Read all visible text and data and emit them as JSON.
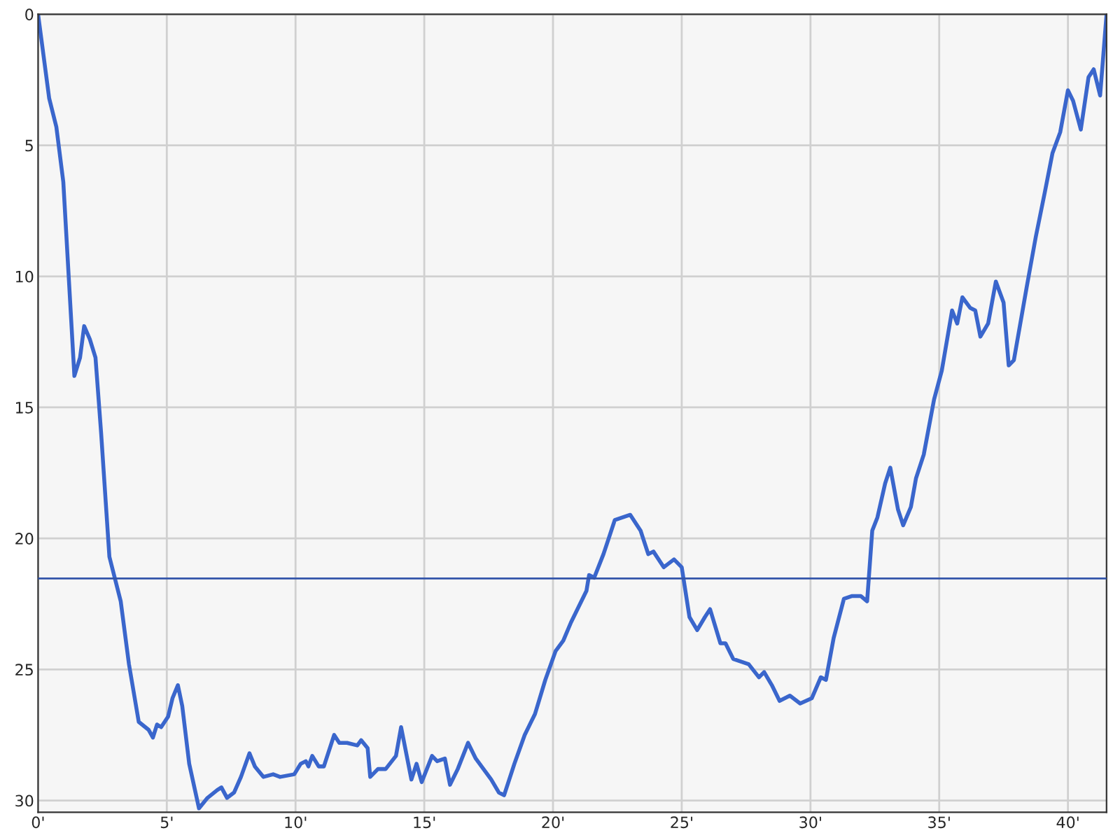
{
  "chart_data": {
    "type": "line",
    "x": [
      0,
      0.43,
      0.71,
      0.98,
      1.41,
      1.63,
      1.79,
      2.01,
      2.23,
      2.45,
      2.77,
      3.21,
      3.53,
      3.91,
      4.29,
      4.46,
      4.62,
      4.78,
      5.05,
      5.22,
      5.43,
      5.6,
      5.87,
      6.25,
      6.58,
      6.96,
      7.12,
      7.34,
      7.61,
      7.88,
      8.21,
      8.42,
      8.75,
      9.13,
      9.4,
      9.95,
      10.2,
      10.4,
      10.5,
      10.65,
      10.9,
      11.1,
      11.5,
      11.7,
      12.0,
      12.4,
      12.55,
      12.8,
      12.9,
      13.2,
      13.5,
      13.9,
      14.1,
      14.5,
      14.7,
      14.9,
      15.3,
      15.5,
      15.8,
      16.0,
      16.3,
      16.7,
      17.0,
      17.3,
      17.6,
      17.9,
      18.1,
      18.5,
      18.9,
      19.3,
      19.7,
      20.1,
      20.4,
      20.7,
      20.9,
      21.3,
      21.4,
      21.6,
      21.96,
      22.4,
      23.0,
      23.4,
      23.7,
      23.9,
      24.3,
      24.7,
      25.0,
      25.3,
      25.6,
      25.9,
      26.1,
      26.5,
      26.7,
      27.0,
      27.3,
      27.6,
      28.0,
      28.2,
      28.5,
      28.8,
      29.2,
      29.6,
      30.05,
      30.4,
      30.6,
      30.9,
      31.3,
      31.6,
      31.96,
      32.2,
      32.4,
      32.6,
      32.9,
      33.1,
      33.4,
      33.6,
      33.9,
      34.1,
      34.4,
      34.8,
      35.1,
      35.5,
      35.7,
      35.9,
      36.2,
      36.4,
      36.6,
      36.9,
      37.2,
      37.5,
      37.7,
      37.9,
      38.4,
      38.75,
      39.1,
      39.4,
      39.7,
      40.0,
      40.2,
      40.5,
      40.8,
      41.0,
      41.25,
      41.5
    ],
    "series": [
      {
        "color": "#3a66cc",
        "values": [
          0,
          3.2,
          4.3,
          6.4,
          13.8,
          13.1,
          11.9,
          12.4,
          13.1,
          16.0,
          20.7,
          22.4,
          24.8,
          27.0,
          27.3,
          27.6,
          27.1,
          27.2,
          26.8,
          26.1,
          25.6,
          26.4,
          28.6,
          30.3,
          29.9,
          29.6,
          29.5,
          29.9,
          29.7,
          29.1,
          28.2,
          28.7,
          29.1,
          29.0,
          29.1,
          29.0,
          28.6,
          28.5,
          28.7,
          28.3,
          28.7,
          28.7,
          27.5,
          27.8,
          27.8,
          27.9,
          27.7,
          28.0,
          29.1,
          28.8,
          28.8,
          28.3,
          27.2,
          29.2,
          28.6,
          29.3,
          28.3,
          28.5,
          28.4,
          29.4,
          28.8,
          27.8,
          28.4,
          28.8,
          29.2,
          29.7,
          29.8,
          28.6,
          27.5,
          26.7,
          25.4,
          24.3,
          23.9,
          23.2,
          22.8,
          22.0,
          21.4,
          21.5,
          20.6,
          19.3,
          19.1,
          19.7,
          20.6,
          20.5,
          21.1,
          20.8,
          21.1,
          23.0,
          23.5,
          23.0,
          22.7,
          24.0,
          24.0,
          24.6,
          24.7,
          24.8,
          25.3,
          25.1,
          25.6,
          26.2,
          26.0,
          26.3,
          26.1,
          25.3,
          25.4,
          23.8,
          22.3,
          22.2,
          22.2,
          22.4,
          19.7,
          19.2,
          17.9,
          17.3,
          18.9,
          19.5,
          18.8,
          17.7,
          16.8,
          14.7,
          13.6,
          11.3,
          11.8,
          10.8,
          11.2,
          11.3,
          12.3,
          11.8,
          10.2,
          11.0,
          13.4,
          13.2,
          10.4,
          8.5,
          6.8,
          5.3,
          4.5,
          2.9,
          3.3,
          4.4,
          2.4,
          2.1,
          3.1,
          0
        ]
      }
    ],
    "xlim": [
      0,
      41.5
    ],
    "ylim": [
      30.45,
      0
    ],
    "xticks": [
      {
        "value": 0,
        "label": "0'"
      },
      {
        "value": 5,
        "label": "5'"
      },
      {
        "value": 10,
        "label": "10'"
      },
      {
        "value": 15,
        "label": "15'"
      },
      {
        "value": 20,
        "label": "20'"
      },
      {
        "value": 25,
        "label": "25'"
      },
      {
        "value": 30,
        "label": "30'"
      },
      {
        "value": 35,
        "label": "35'"
      },
      {
        "value": 40,
        "label": "40'"
      }
    ],
    "yticks": [
      0,
      5,
      10,
      15,
      20,
      25,
      30
    ],
    "ref_lines": [
      {
        "axis": "y",
        "value": 21.53,
        "color": "#3355aa"
      }
    ],
    "grid": true,
    "legend": false
  }
}
